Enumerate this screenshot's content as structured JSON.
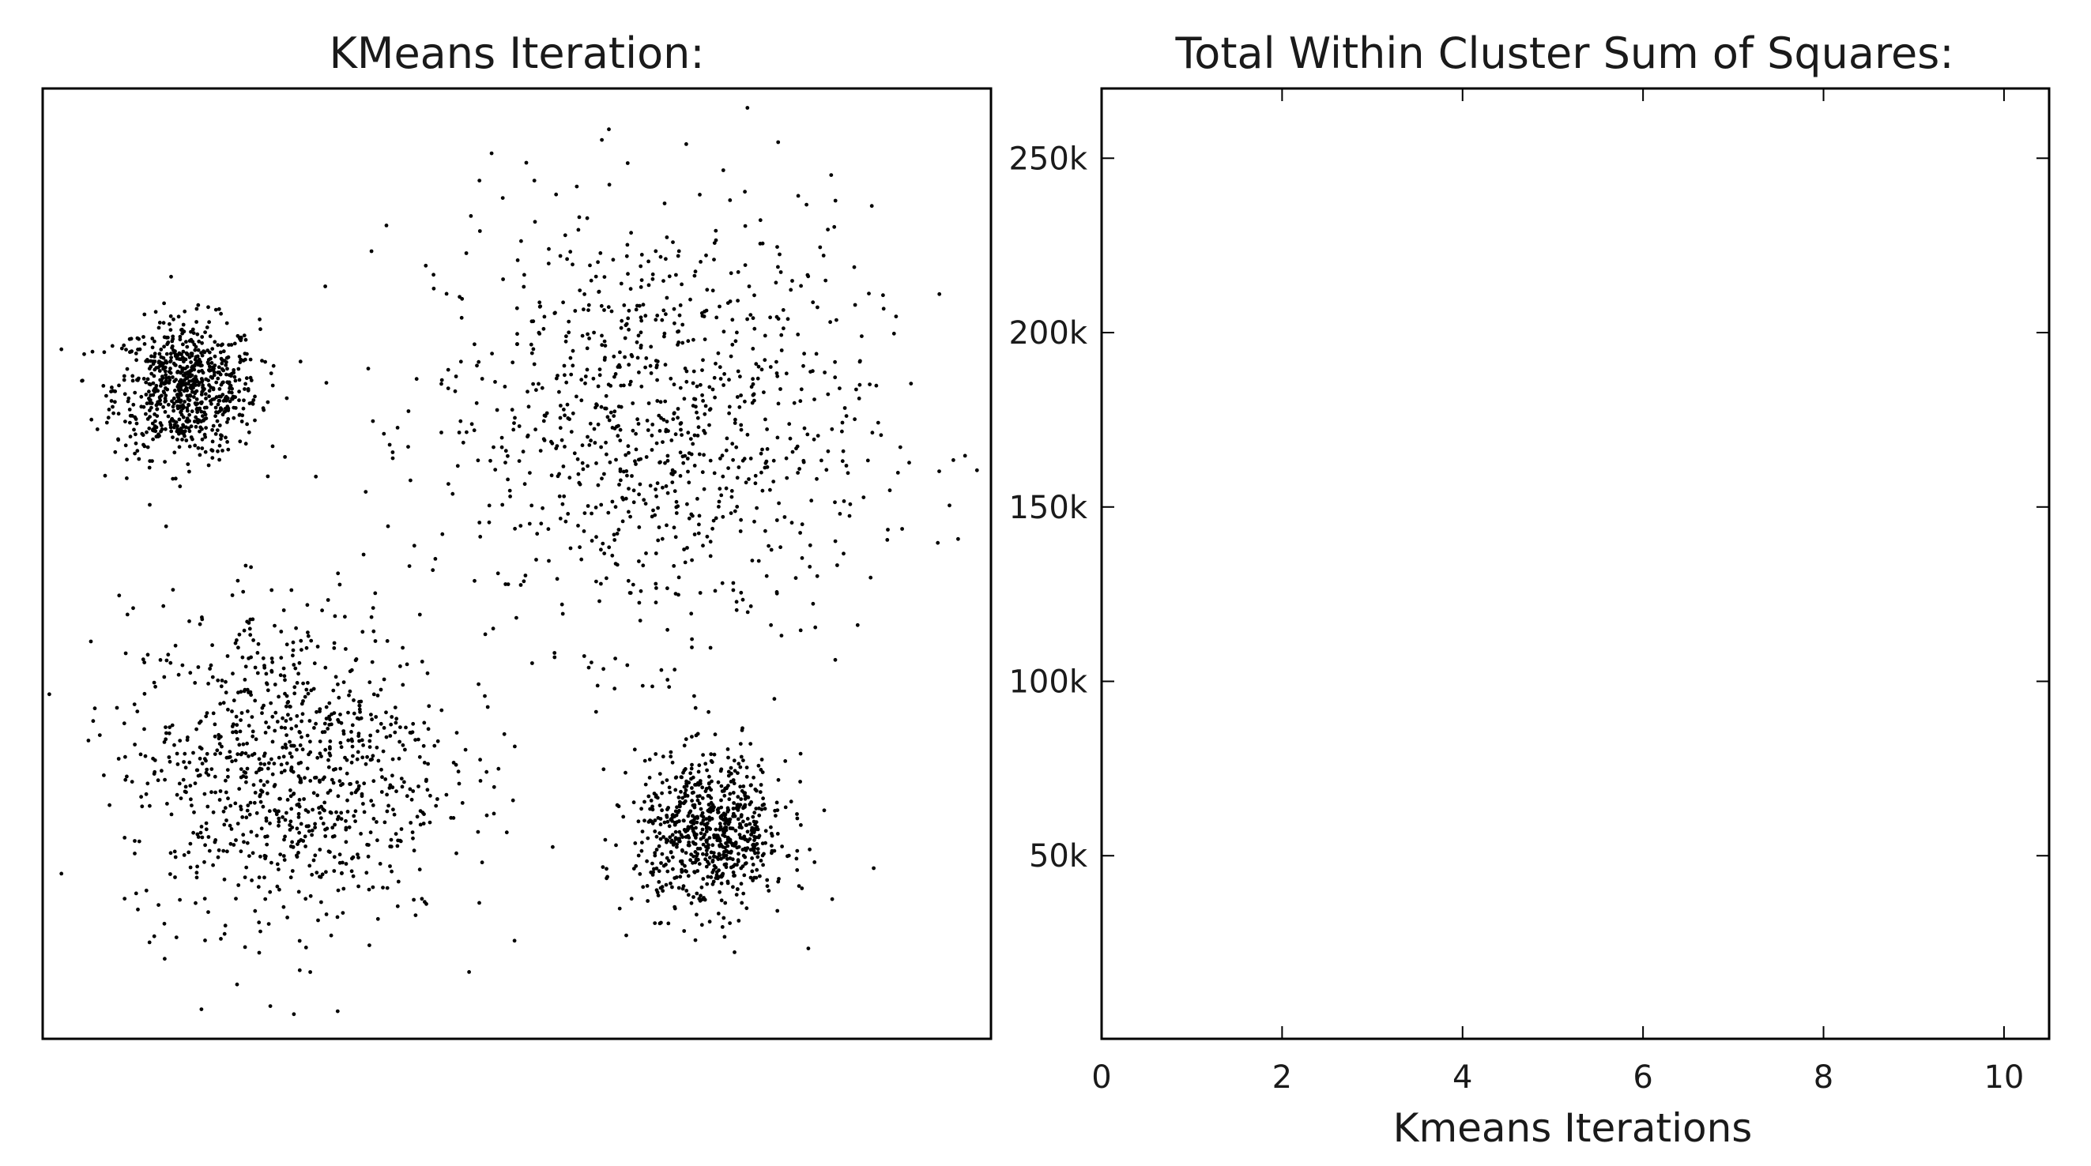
{
  "chart_data": [
    {
      "type": "scatter",
      "title": "KMeans Iteration:",
      "xlabel": "",
      "ylabel": "",
      "axes_ticks": false,
      "grid": false,
      "xlim": [
        0,
        100
      ],
      "ylim": [
        0,
        100
      ],
      "marker_color": "#000000",
      "clusters": [
        {
          "center": [
            15.2,
            68.4
          ],
          "std": [
            3.8,
            3.6
          ],
          "count": 750
        },
        {
          "center": [
            64.4,
            64.5
          ],
          "std": [
            11.5,
            11.5
          ],
          "count": 950
        },
        {
          "center": [
            25.7,
            28.7
          ],
          "std": [
            8.5,
            8.5
          ],
          "count": 950
        },
        {
          "center": [
            70.5,
            21.6
          ],
          "std": [
            4.0,
            4.0
          ],
          "count": 750
        }
      ]
    },
    {
      "type": "line",
      "title": "Total Within Cluster Sum of Squares:",
      "xlabel": "Kmeans Iterations",
      "ylabel": "",
      "grid": false,
      "xlim": [
        0,
        10.5
      ],
      "ylim": [
        -2500,
        270000
      ],
      "xticks": [
        0,
        2,
        4,
        6,
        8,
        10
      ],
      "xtick_labels": [
        "0",
        "2",
        "4",
        "6",
        "8",
        "10"
      ],
      "yticks": [
        50000,
        100000,
        150000,
        200000,
        250000
      ],
      "ytick_labels": [
        "50k",
        "100k",
        "150k",
        "200k",
        "250k"
      ],
      "series": []
    }
  ]
}
